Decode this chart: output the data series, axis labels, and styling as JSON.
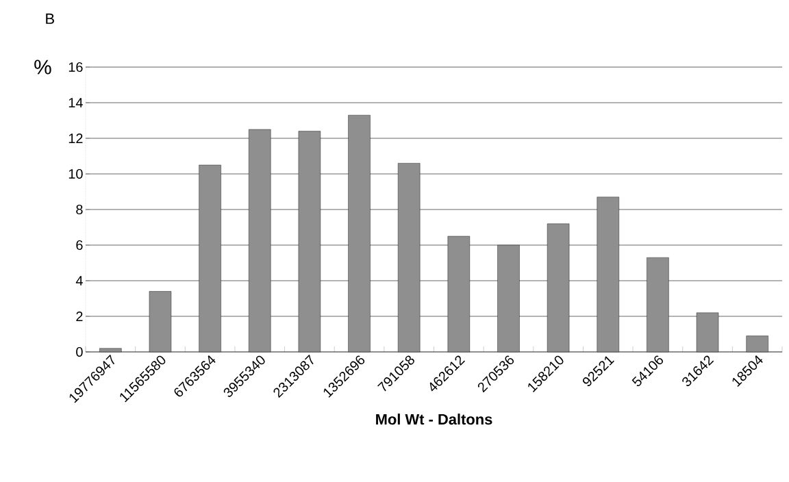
{
  "chart_data": {
    "type": "bar",
    "categories": [
      "19776947",
      "11565580",
      "6763564",
      "3955340",
      "2313087",
      "1352696",
      "791058",
      "462612",
      "270536",
      "158210",
      "92521",
      "54106",
      "31642",
      "18504"
    ],
    "values": [
      0.2,
      3.4,
      10.5,
      12.5,
      12.4,
      13.3,
      10.6,
      6.5,
      6.0,
      7.2,
      8.7,
      5.3,
      2.2,
      0.9
    ],
    "color": "#8f8f8f",
    "xlabel": "Mol Wt - Daltons",
    "ylabel": "%",
    "annotations": [
      "B"
    ],
    "ylim": [
      0,
      16
    ],
    "yticks": [
      0,
      2,
      4,
      6,
      8,
      10,
      12,
      14,
      16
    ],
    "grid": "y"
  }
}
